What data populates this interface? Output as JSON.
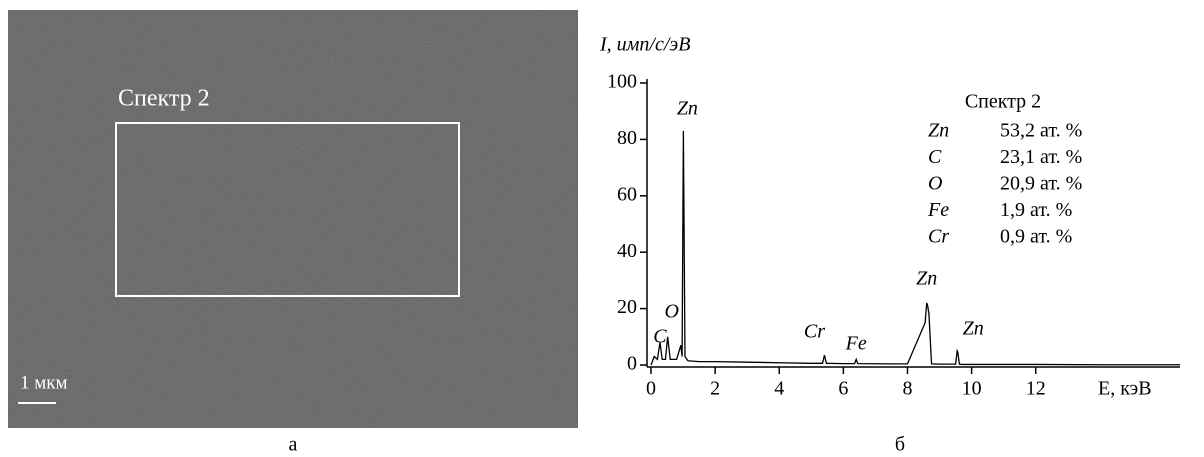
{
  "image_panel": {
    "region_label": "Спектр 2",
    "scale_label": "1 мкм",
    "caption": "а"
  },
  "chart_data": {
    "type": "line",
    "caption": "б",
    "y_label": "I, имп/с/эВ",
    "x_label": "E, кэВ",
    "x": [
      0,
      0.1,
      0.2,
      0.28,
      0.35,
      0.45,
      0.52,
      0.6,
      0.8,
      0.93,
      0.97,
      1.01,
      1.06,
      1.15,
      1.5,
      2.0,
      3.0,
      4.0,
      5.0,
      5.35,
      5.41,
      5.47,
      6.0,
      6.35,
      6.4,
      6.45,
      7.5,
      8.0,
      8.55,
      8.6,
      8.63,
      8.67,
      8.75,
      9.0,
      9.5,
      9.55,
      9.57,
      9.62,
      9.7,
      10.5,
      12.0,
      14.0,
      16.5
    ],
    "values": [
      0,
      3,
      2,
      8,
      2,
      2,
      10,
      2,
      2,
      7,
      3,
      83,
      3,
      1.5,
      1.2,
      1.2,
      1,
      0.8,
      0.6,
      0.6,
      3.5,
      0.6,
      0.5,
      0.5,
      2,
      0.5,
      0.4,
      0.4,
      15,
      22,
      21,
      18,
      0.4,
      0.3,
      0.3,
      5,
      4.5,
      0.3,
      0.2,
      0.2,
      0.2,
      0.1,
      0.1
    ],
    "color": "#000000",
    "xlim": [
      0,
      16.5
    ],
    "xticks": [
      0,
      2,
      4,
      6,
      8,
      10,
      12
    ],
    "ylim": [
      0,
      100
    ],
    "yticks": [
      0,
      20,
      40,
      60,
      80,
      100
    ],
    "annotations": [
      "Zn",
      "O",
      "C",
      "Cr",
      "Fe",
      "Zn",
      "Zn"
    ],
    "inset": {
      "title": "Спектр 2",
      "rows": [
        [
          "Zn",
          "53,2 ат. %"
        ],
        [
          "C",
          "23,1 ат. %"
        ],
        [
          "O",
          "20,9 ат. %"
        ],
        [
          "Fe",
          "1,9 ат. %"
        ],
        [
          "Cr",
          "0,9 ат. %"
        ]
      ]
    }
  }
}
